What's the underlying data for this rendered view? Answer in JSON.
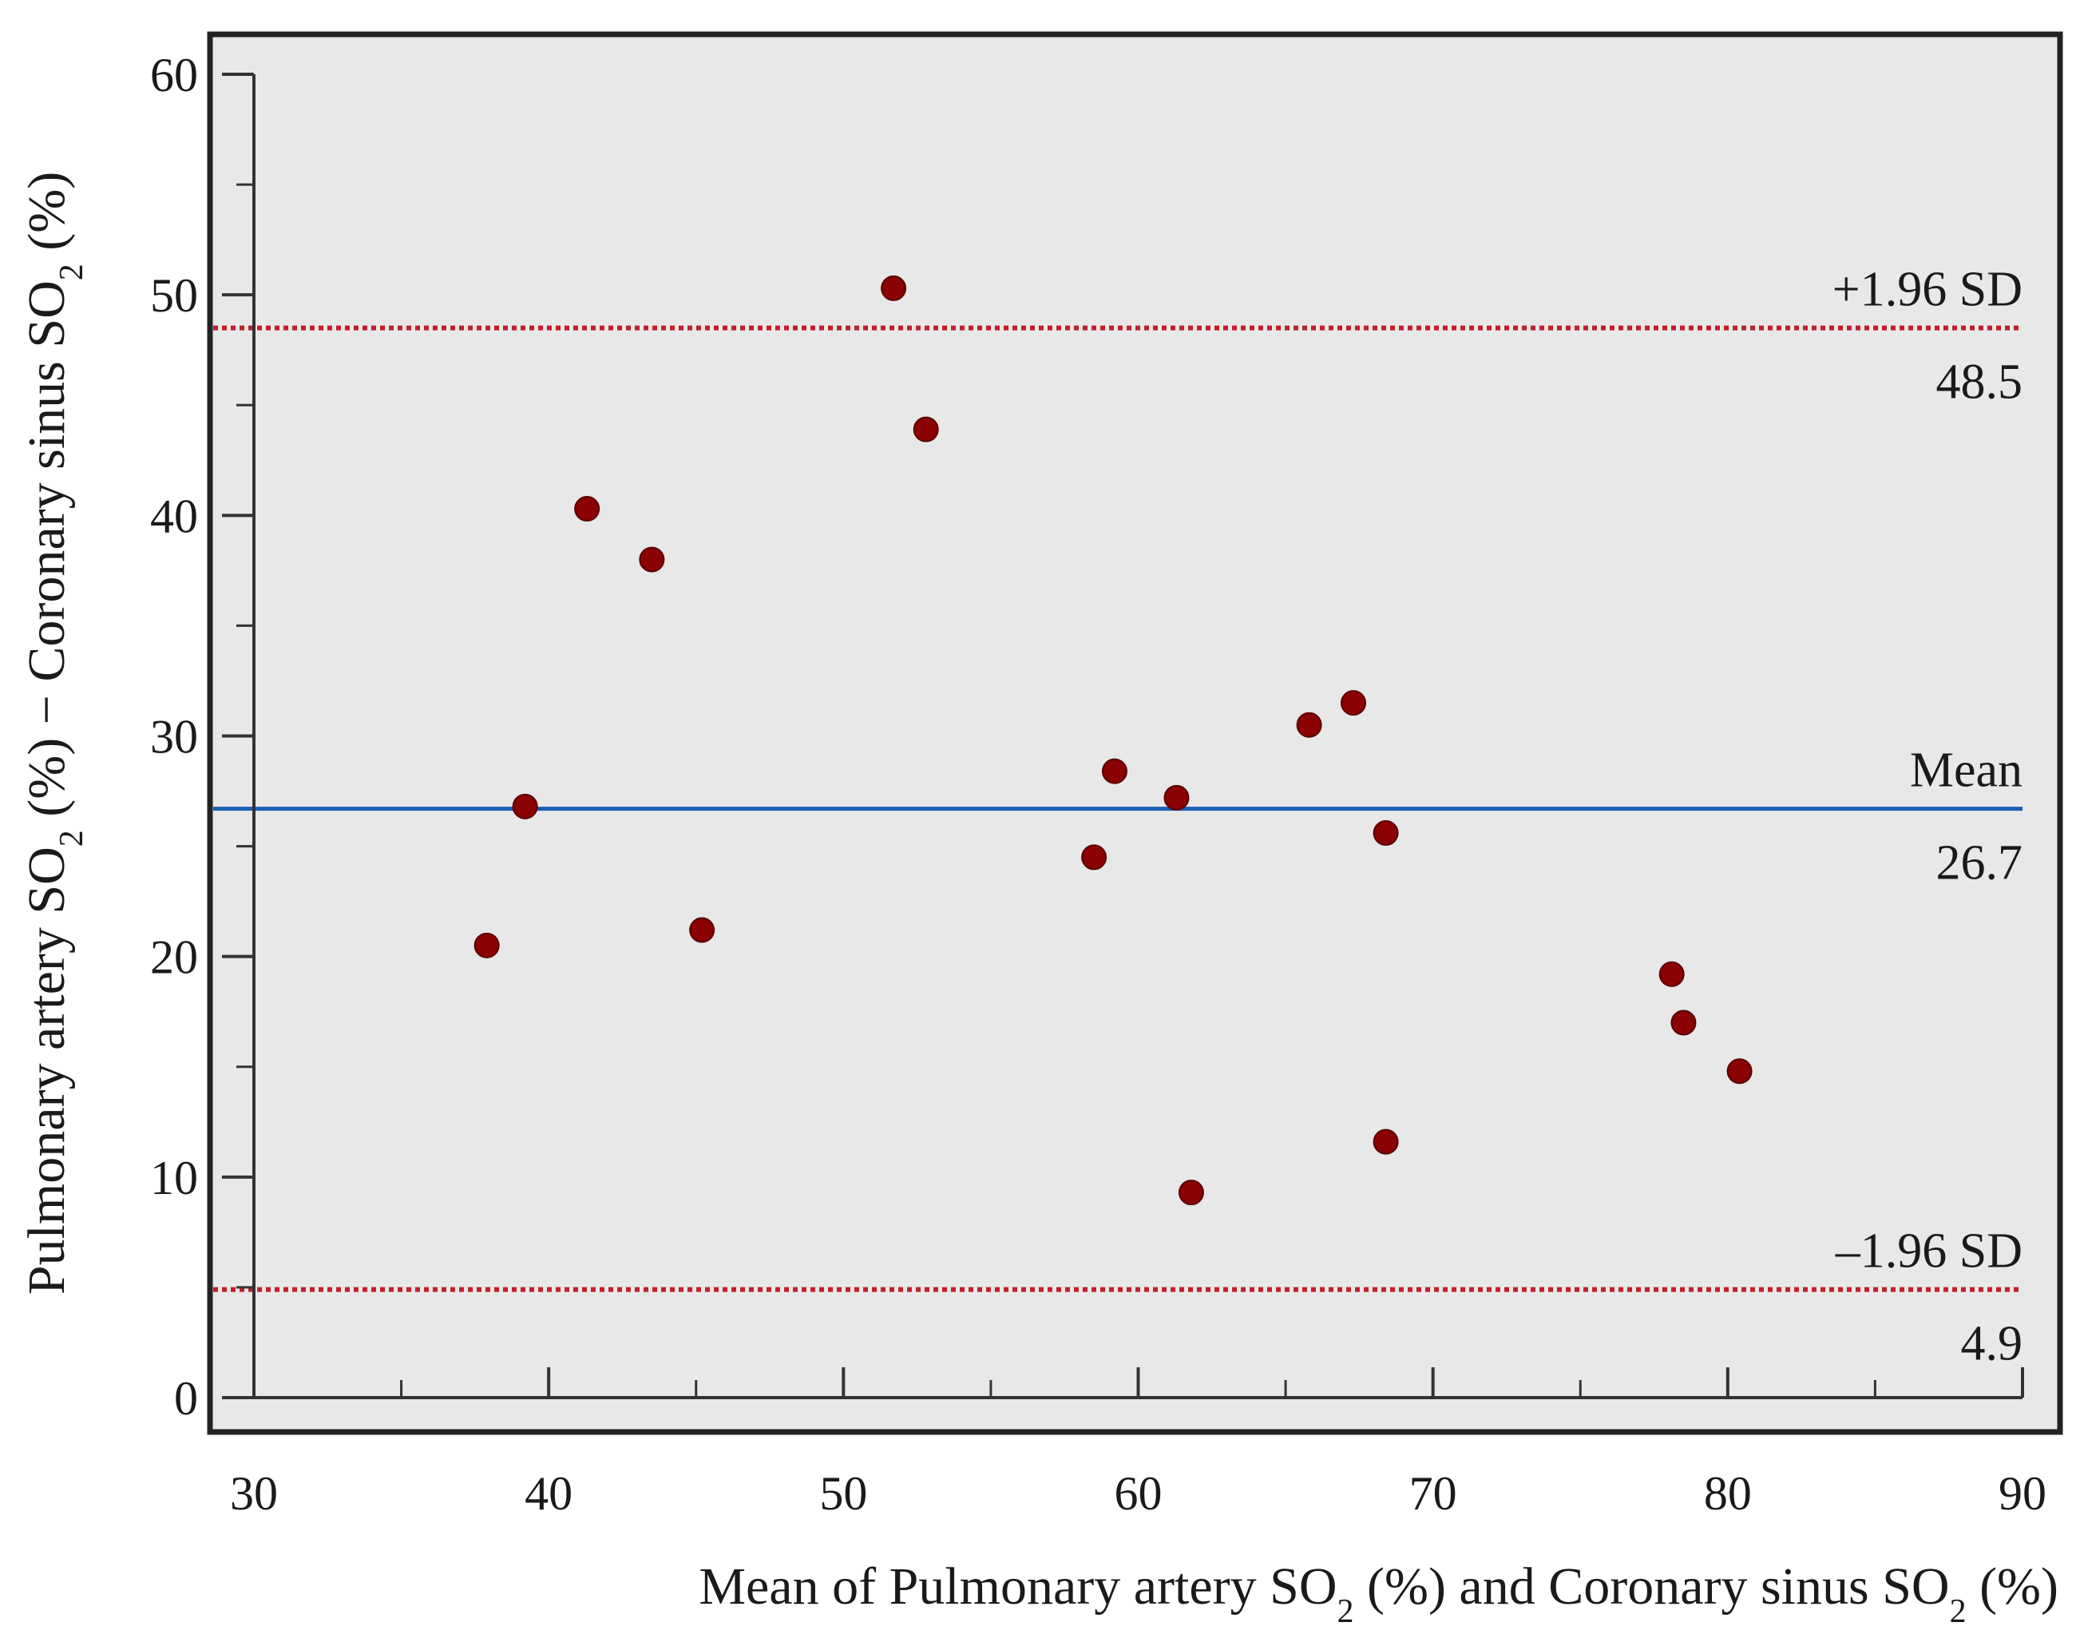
{
  "chart_data": {
    "type": "scatter",
    "title": "",
    "xlabel": {
      "parts": [
        {
          "text": "Mean of Pulmonary artery SO",
          "sub": false
        },
        {
          "text": "2",
          "sub": true
        },
        {
          "text": " (%) and Coronary sinus SO",
          "sub": false
        },
        {
          "text": "2",
          "sub": true
        },
        {
          "text": " (%)",
          "sub": false
        }
      ]
    },
    "ylabel": {
      "parts": [
        {
          "text": "Pulmonary artery SO",
          "sub": false
        },
        {
          "text": "2",
          "sub": true
        },
        {
          "text": " (%) − Coronary sinus SO",
          "sub": false
        },
        {
          "text": "2",
          "sub": true
        },
        {
          "text": " (%)",
          "sub": false
        }
      ]
    },
    "xlim": [
      30,
      90
    ],
    "ylim": [
      0,
      60
    ],
    "xticks_major": [
      30,
      40,
      50,
      60,
      70,
      80,
      90
    ],
    "xticks_minor": [
      35,
      45,
      55,
      65,
      75,
      85
    ],
    "yticks_major": [
      0,
      10,
      20,
      30,
      40,
      50,
      60
    ],
    "yticks_minor": [
      5,
      15,
      25,
      35,
      45,
      55
    ],
    "grid": false,
    "background_color": "#e8e8e8",
    "point_color": "#8b0000",
    "points": [
      {
        "x": 37.9,
        "y": 20.5
      },
      {
        "x": 39.2,
        "y": 26.8
      },
      {
        "x": 41.3,
        "y": 40.3
      },
      {
        "x": 43.5,
        "y": 38.0
      },
      {
        "x": 45.2,
        "y": 21.2
      },
      {
        "x": 51.7,
        "y": 50.3
      },
      {
        "x": 52.8,
        "y": 43.9
      },
      {
        "x": 58.5,
        "y": 24.5
      },
      {
        "x": 59.2,
        "y": 28.4
      },
      {
        "x": 61.3,
        "y": 27.2
      },
      {
        "x": 61.8,
        "y": 9.3
      },
      {
        "x": 65.8,
        "y": 30.5
      },
      {
        "x": 67.3,
        "y": 31.5
      },
      {
        "x": 68.4,
        "y": 25.6
      },
      {
        "x": 68.4,
        "y": 11.6
      },
      {
        "x": 78.1,
        "y": 19.2
      },
      {
        "x": 78.5,
        "y": 17.0
      },
      {
        "x": 80.4,
        "y": 14.8
      }
    ],
    "reference_lines": [
      {
        "id": "upper-loa",
        "label": "+1.96 SD",
        "value_label": "48.5",
        "y": 48.5,
        "color": "#c0202a",
        "style": "dotted"
      },
      {
        "id": "mean",
        "label": "Mean",
        "value_label": "26.7",
        "y": 26.7,
        "color": "#1a5fb4",
        "style": "solid"
      },
      {
        "id": "lower-loa",
        "label": "–1.96 SD",
        "value_label": "4.9",
        "y": 4.9,
        "color": "#c0202a",
        "style": "dotted"
      }
    ]
  }
}
